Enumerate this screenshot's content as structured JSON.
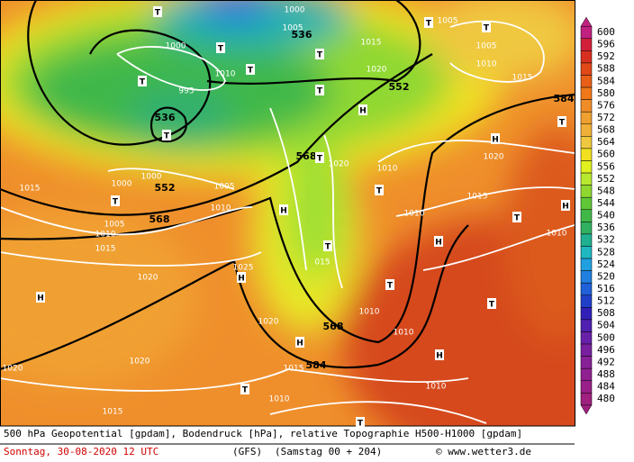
{
  "scale": {
    "labels": [
      600,
      596,
      592,
      588,
      584,
      580,
      576,
      572,
      568,
      564,
      560,
      556,
      552,
      548,
      544,
      540,
      536,
      532,
      528,
      524,
      520,
      516,
      512,
      508,
      504,
      500,
      496,
      492,
      488,
      484,
      480
    ]
  },
  "map_labels": [
    "T",
    "1000",
    "1005",
    "536",
    "T",
    "1015",
    "T",
    "1005",
    "T",
    "1005",
    "1010",
    "1000",
    "T",
    "1010",
    "T",
    "1020",
    "552",
    "T",
    "995",
    "T",
    "H",
    "1015",
    "584",
    "T",
    "536",
    "T",
    "H",
    "1020",
    "568",
    "T",
    "1020",
    "1010",
    "1000",
    "1015",
    "1000",
    "552",
    "1005",
    "T",
    "1015",
    "H",
    "T",
    "1010",
    "H",
    "1010",
    "T",
    "1005",
    "568",
    "1010",
    "1015",
    "1010",
    "H",
    "T",
    "015",
    "1025",
    "H",
    "1020",
    "T",
    "H",
    "T",
    "1010",
    "1020",
    "568",
    "1010",
    "H",
    "H",
    "1020",
    "1020",
    "1015",
    "584",
    "T",
    "1010",
    "1010",
    "1015",
    "T"
  ],
  "footer": {
    "line1": "500 hPa Geopotential [gpdam], Bodendruck [hPa], relative Topographie H500-H1000 [gpdam]",
    "date": "Sonntag, 30-08-2020  12 UTC",
    "model": "(GFS)",
    "run": "(Samstag 00 + 204)",
    "site": "© www.wetter3.de"
  }
}
